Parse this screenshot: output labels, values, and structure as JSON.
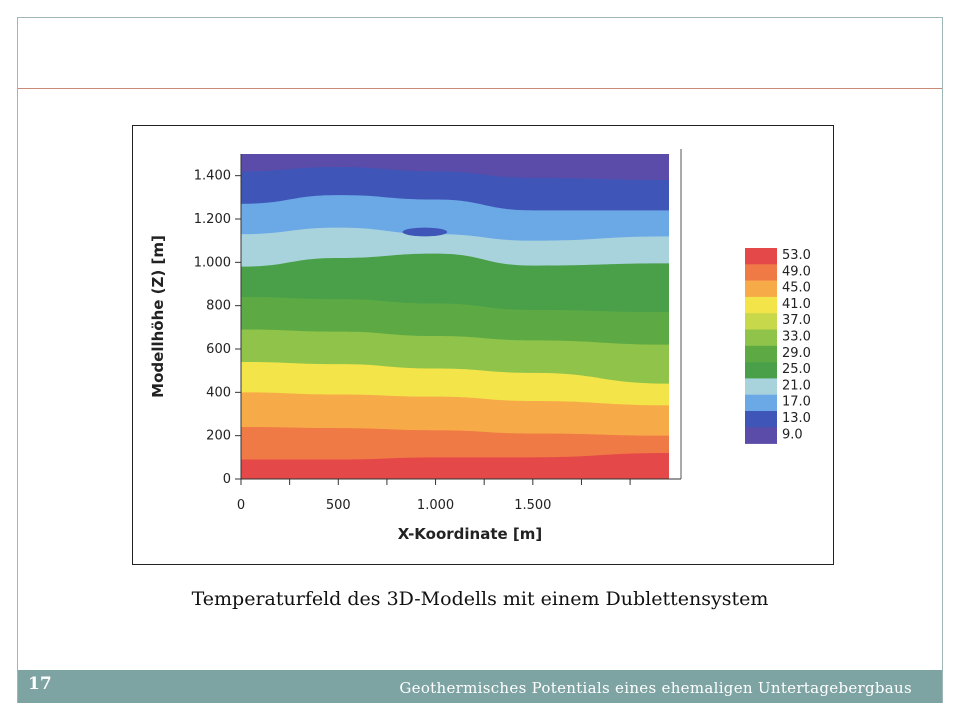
{
  "slide": {
    "caption": "Temperaturfeld des 3D-Modells mit einem Dublettensystem",
    "footer_title": "Geothermisches Potentials eines ehemaligen Untertagebergbaus",
    "slide_number": "17"
  },
  "chart_data": {
    "type": "heatmap",
    "title": "",
    "xlabel": "X-Koordinate [m]",
    "ylabel": "Modellhöhe (Z) [m]",
    "xlim": [
      0,
      2200
    ],
    "ylim": [
      0,
      1500
    ],
    "x_ticks": [
      0,
      500,
      1000,
      1500
    ],
    "x_tick_labels": [
      "0",
      "500",
      "1.000",
      "1.500"
    ],
    "y_ticks": [
      0,
      200,
      400,
      600,
      800,
      1000,
      1200,
      1400
    ],
    "y_tick_labels": [
      "0",
      "200",
      "400",
      "600",
      "800",
      "1.000",
      "1.200",
      "1.400"
    ],
    "legend_position": "right",
    "legend_levels": [
      "53.0",
      "49.0",
      "45.0",
      "41.0",
      "37.0",
      "33.0",
      "29.0",
      "25.0",
      "21.0",
      "17.0",
      "13.0",
      "9.0"
    ],
    "legend_colors": [
      "#e54848",
      "#f07a45",
      "#f7ab48",
      "#f3e44a",
      "#c7d84a",
      "#8fc34a",
      "#5daa45",
      "#49a048",
      "#a8d2dc",
      "#6aa8e6",
      "#3f55b7",
      "#5a4ca8"
    ],
    "x_samples": [
      0,
      500,
      1000,
      1500,
      2200
    ],
    "bands": [
      {
        "lower": 9.0,
        "upper": 13.0,
        "color": "#5a4ca8",
        "top": [
          1500,
          1500,
          1500,
          1500,
          1500
        ]
      },
      {
        "lower": 13.0,
        "upper": 17.0,
        "color": "#3f55b7",
        "top": [
          1420,
          1440,
          1420,
          1390,
          1380
        ]
      },
      {
        "lower": 17.0,
        "upper": 21.0,
        "color": "#6aa8e6",
        "top": [
          1270,
          1310,
          1290,
          1240,
          1240
        ]
      },
      {
        "lower": 21.0,
        "upper": 25.0,
        "color": "#a8d2dc",
        "top": [
          1130,
          1160,
          1130,
          1100,
          1120
        ]
      },
      {
        "lower": 25.0,
        "upper": 29.0,
        "color": "#49a048",
        "top": [
          980,
          1020,
          1040,
          985,
          995
        ]
      },
      {
        "lower": 29.0,
        "upper": 33.0,
        "color": "#5daa45",
        "top": [
          840,
          830,
          810,
          780,
          770
        ]
      },
      {
        "lower": 33.0,
        "upper": 37.0,
        "color": "#8fc34a",
        "top": [
          690,
          680,
          660,
          640,
          620
        ]
      },
      {
        "lower": 37.0,
        "upper": 41.0,
        "color": "#f3e44a",
        "top": [
          540,
          530,
          510,
          490,
          440
        ]
      },
      {
        "lower": 41.0,
        "upper": 45.0,
        "color": "#f7ab48",
        "top": [
          400,
          390,
          380,
          360,
          340
        ]
      },
      {
        "lower": 45.0,
        "upper": 49.0,
        "color": "#f07a45",
        "top": [
          240,
          235,
          225,
          210,
          200
        ]
      },
      {
        "lower": 49.0,
        "upper": 53.0,
        "color": "#e54848",
        "top": [
          90,
          90,
          100,
          100,
          120
        ]
      }
    ],
    "anomaly": {
      "x": [
        830,
        1060
      ],
      "z": [
        1120,
        1160
      ],
      "color": "#3f55b7"
    }
  }
}
